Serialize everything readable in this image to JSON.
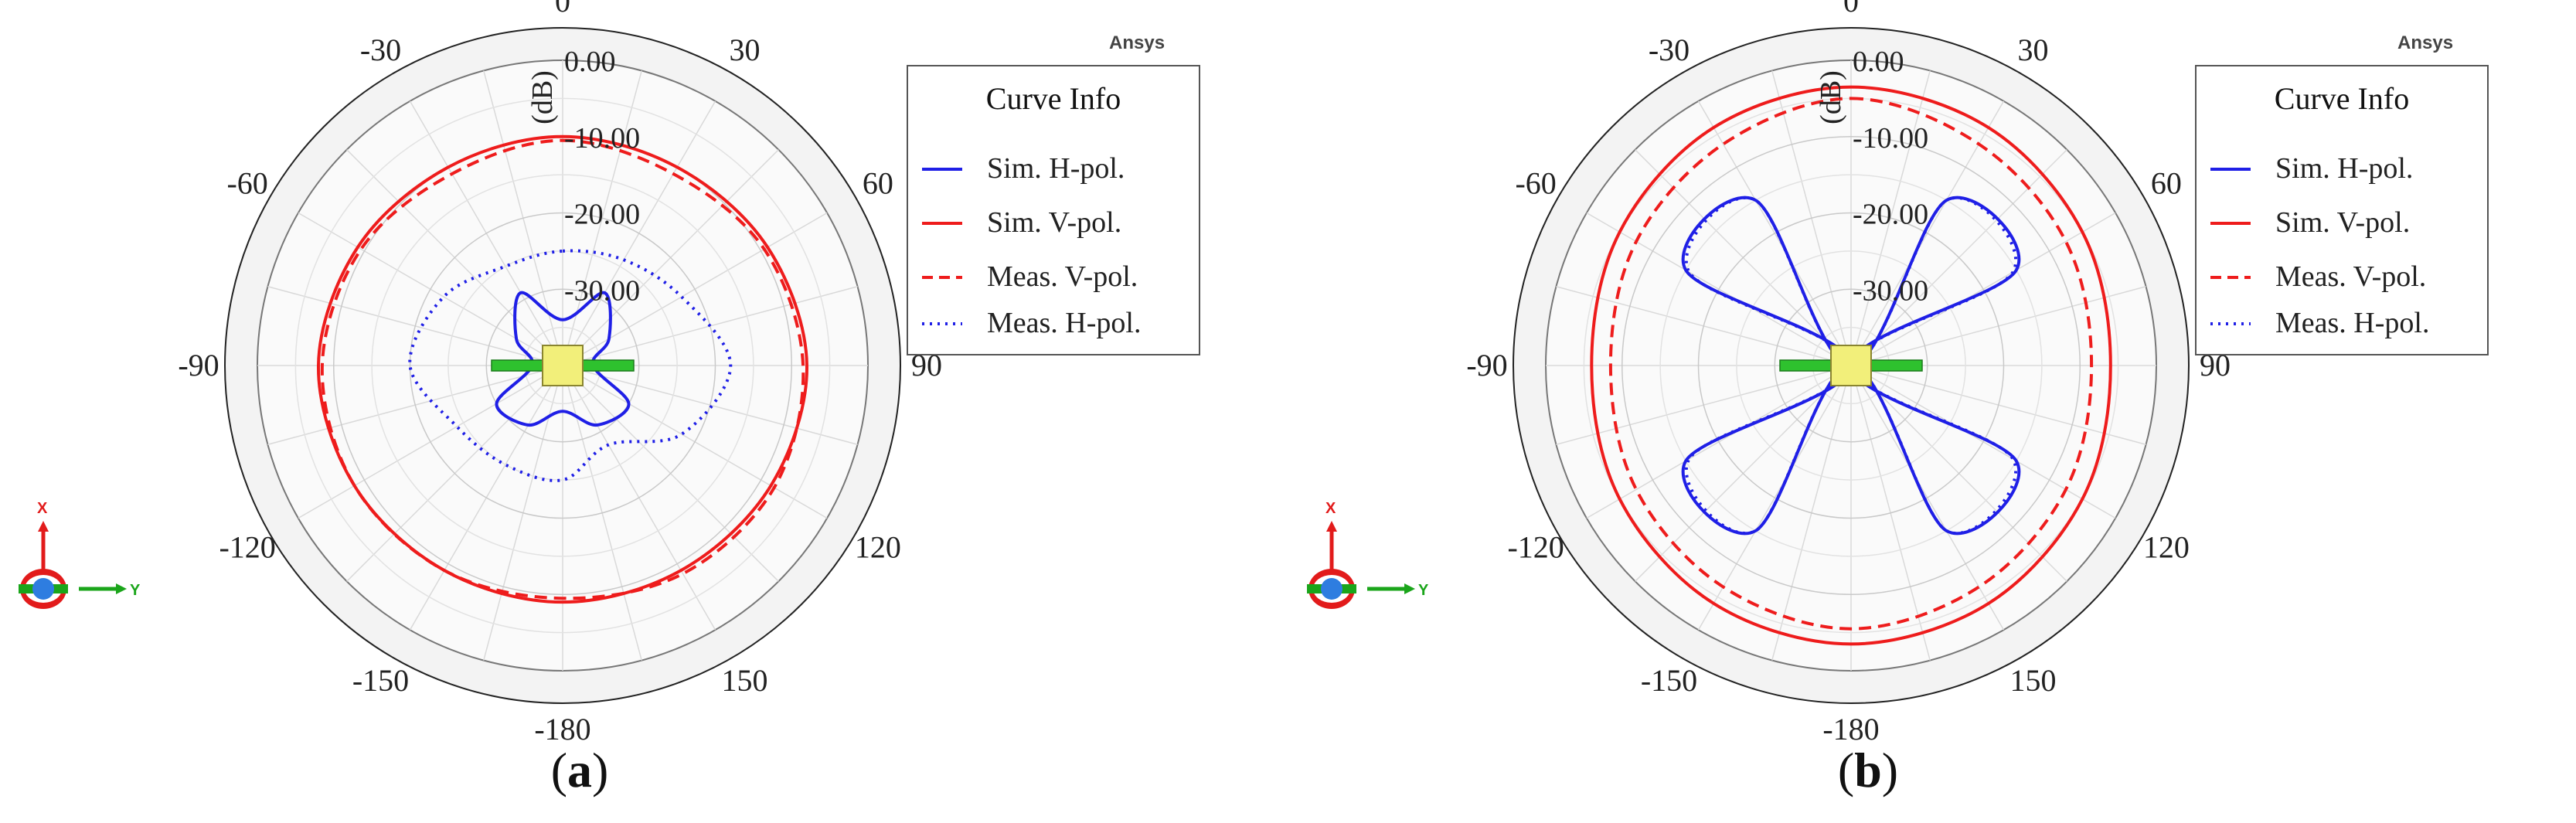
{
  "vendor_label": "Ansys",
  "legend": {
    "title": "Curve Info",
    "items": [
      {
        "label": "Sim. H-pol.",
        "color": "#1f1fe6",
        "style": "solid"
      },
      {
        "label": "Sim. V-pol.",
        "color": "#ee1c1c",
        "style": "solid"
      },
      {
        "label": "Meas. V-pol.",
        "color": "#ee1c1c",
        "style": "dashed"
      },
      {
        "label": "Meas. H-pol.",
        "color": "#1f1fe6",
        "style": "dotted"
      }
    ]
  },
  "axis_icon": {
    "x_label": "X",
    "y_label": "Y"
  },
  "panels": [
    {
      "caption_open": "(",
      "caption_letter": "a",
      "caption_close": ")"
    },
    {
      "caption_open": "(",
      "caption_letter": "b",
      "caption_close": ")"
    }
  ],
  "chart_data": [
    {
      "type": "polar-line",
      "r_label": "(dB)",
      "r_range": [
        -40,
        0
      ],
      "r_ticks": [
        "0.00",
        "-10.00",
        "-20.00",
        "-30.00"
      ],
      "theta_ticks": [
        "0",
        "30",
        "60",
        "90",
        "120",
        "150",
        "-180",
        "-150",
        "-120",
        "-90",
        "-60",
        "-30"
      ],
      "theta_labels_deg": [
        0,
        30,
        60,
        90,
        120,
        150,
        180,
        -150,
        -120,
        -90,
        -60,
        -30
      ],
      "grid": true,
      "legend_position": "right",
      "theta_deg": [
        0,
        30,
        60,
        90,
        120,
        150,
        180,
        210,
        240,
        270,
        300,
        330
      ],
      "series": [
        {
          "name": "Sim. H-pol.",
          "r_db": [
            -34,
            -29,
            -33,
            -36,
            -30,
            -31,
            -34,
            -31,
            -30,
            -36,
            -33,
            -29
          ]
        },
        {
          "name": "Sim. V-pol.",
          "r_db": [
            -10,
            -10,
            -9,
            -8,
            -8.5,
            -9,
            -9,
            -9,
            -8.5,
            -8,
            -9,
            -10
          ]
        },
        {
          "name": "Meas. V-pol.",
          "r_db": [
            -10.5,
            -11,
            -9.5,
            -8.5,
            -8,
            -8.5,
            -9.5,
            -9,
            -8.5,
            -8.5,
            -9.5,
            -11
          ]
        },
        {
          "name": "Meas. H-pol.",
          "r_db": [
            -25,
            -24,
            -22,
            -18,
            -22,
            -28,
            -25,
            -25,
            -24,
            -20,
            -22,
            -25
          ]
        }
      ]
    },
    {
      "type": "polar-line",
      "r_label": "(dB)",
      "r_range": [
        -40,
        0
      ],
      "r_ticks": [
        "0.00",
        "-10.00",
        "-20.00",
        "-30.00"
      ],
      "theta_ticks": [
        "0",
        "30",
        "60",
        "90",
        "120",
        "150",
        "-180",
        "-150",
        "-120",
        "-90",
        "-60",
        "-30"
      ],
      "theta_labels_deg": [
        0,
        30,
        60,
        90,
        120,
        150,
        180,
        -150,
        -120,
        -90,
        -60,
        -30
      ],
      "grid": true,
      "legend_position": "right",
      "theta_deg": [
        0,
        30,
        60,
        90,
        120,
        150,
        180,
        210,
        240,
        270,
        300,
        330
      ],
      "series": [
        {
          "name": "Sim. H-pol.",
          "r_db": [
            -40,
            -15,
            -15,
            -40,
            -15,
            -15,
            -40,
            -15,
            -15,
            -40,
            -15,
            -15
          ]
        },
        {
          "name": "Sim. V-pol.",
          "r_db": [
            -3.5,
            -4,
            -5,
            -6,
            -5,
            -4,
            -3.5,
            -4,
            -5,
            -6,
            -5,
            -4
          ]
        },
        {
          "name": "Meas. V-pol.",
          "r_db": [
            -5,
            -6.5,
            -7.5,
            -8.5,
            -7.5,
            -6.5,
            -5.5,
            -6.5,
            -7.5,
            -8.5,
            -7.5,
            -6.5
          ]
        },
        {
          "name": "Meas. H-pol.",
          "r_db": [
            -40,
            -15,
            -15.5,
            -40,
            -15.5,
            -15,
            -40,
            -15,
            -15.5,
            -40,
            -15.5,
            -15
          ]
        }
      ]
    }
  ]
}
